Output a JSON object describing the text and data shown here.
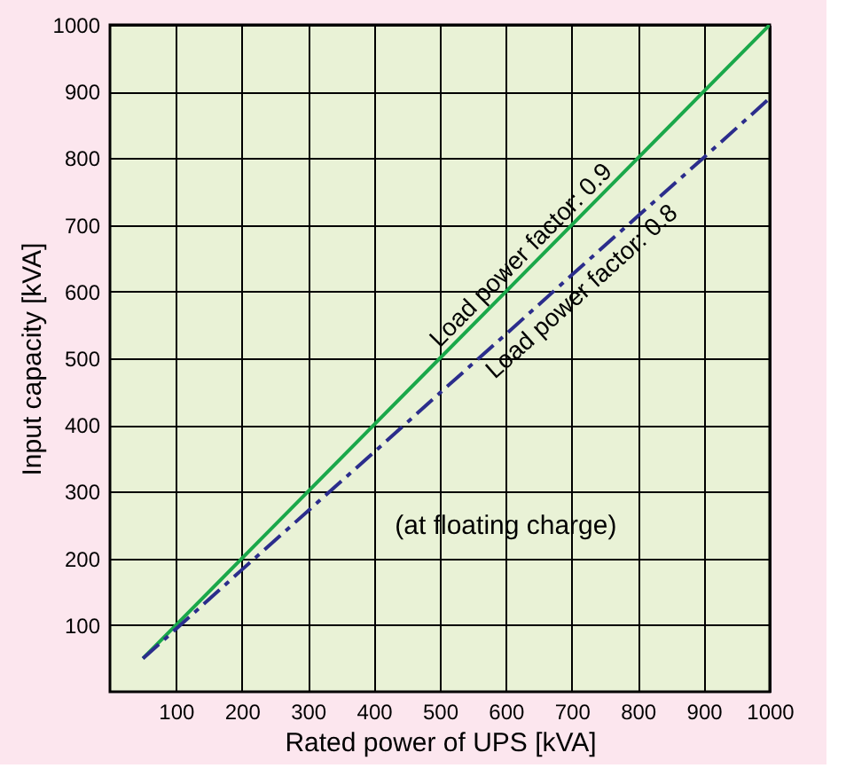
{
  "chart_data": {
    "type": "line",
    "xlabel": "Rated power of UPS [kVA]",
    "ylabel": "Input capacity [kVA]",
    "xlim": [
      0,
      1000
    ],
    "ylim": [
      0,
      1000
    ],
    "xticks": [
      100,
      200,
      300,
      400,
      500,
      600,
      700,
      800,
      900,
      1000
    ],
    "yticks": [
      100,
      200,
      300,
      400,
      500,
      600,
      700,
      800,
      900,
      {
        "value": 1000,
        "label": "1000"
      }
    ],
    "grid": true,
    "legend": false,
    "series": [
      {
        "name": "Load power factor: 0.9",
        "color": "#1aa84a",
        "x": [
          50,
          100,
          200,
          300,
          400,
          500,
          600,
          700,
          800,
          900,
          1000
        ],
        "values": [
          50,
          100,
          200,
          300,
          400,
          500,
          600,
          700,
          800,
          900,
          1000
        ],
        "line_style": "solid"
      },
      {
        "name": "Load power factor: 0.8",
        "color": "#2b2d8c",
        "x": [
          50,
          100,
          200,
          300,
          400,
          500,
          600,
          700,
          800,
          900,
          1000
        ],
        "values": [
          50,
          94,
          183,
          271,
          359,
          448,
          536,
          625,
          713,
          801,
          890
        ],
        "line_style": "dashed"
      }
    ],
    "annotations": [
      "(at floating charge)"
    ]
  }
}
